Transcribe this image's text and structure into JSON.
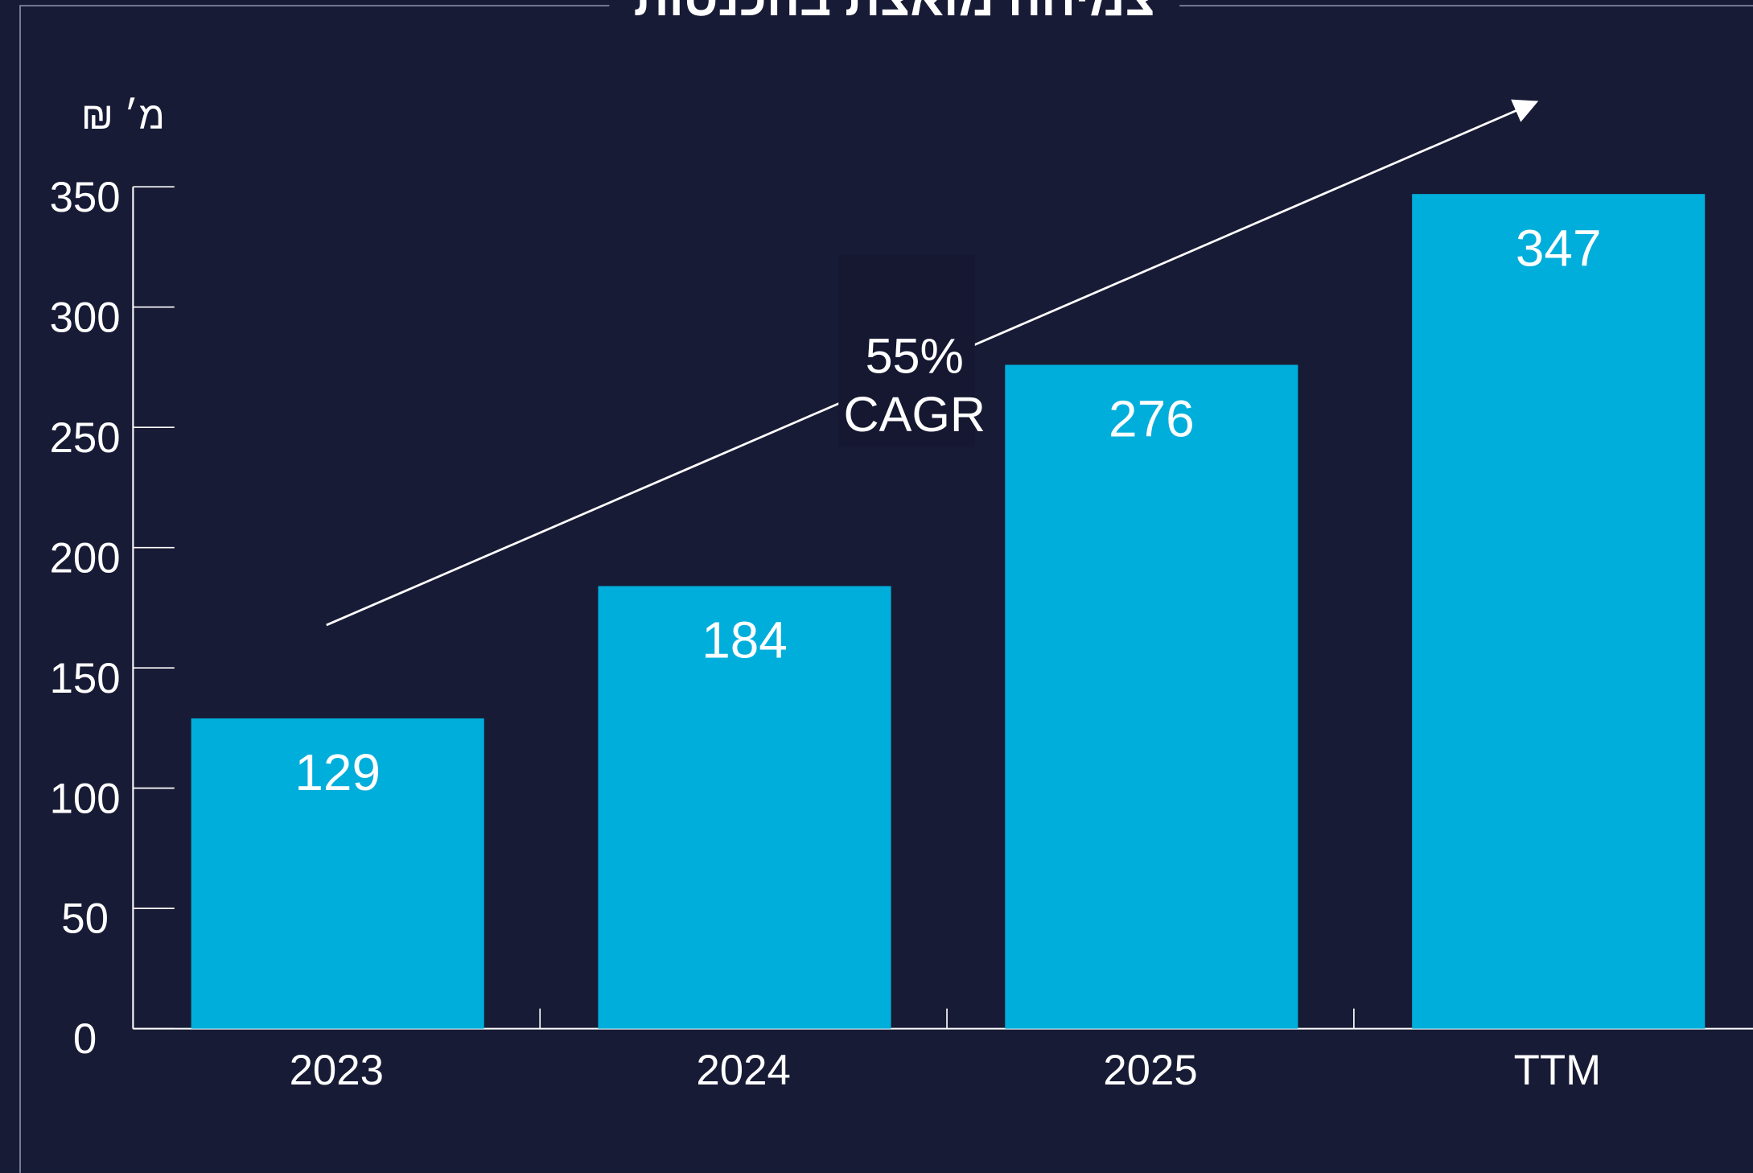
{
  "chart_data": {
    "type": "bar",
    "title": "צמיחה מואצת בהכנסות",
    "y_label": "מ׳ ₪",
    "categories": [
      "2023",
      "2024",
      "2025",
      "TTM"
    ],
    "values": [
      129,
      184,
      276,
      347
    ],
    "color": "#00aedb",
    "ylim": [
      0,
      350
    ],
    "yticks": [
      0,
      50,
      100,
      150,
      200,
      250,
      300,
      350
    ],
    "annotation": [
      "55%",
      "CAGR"
    ]
  }
}
